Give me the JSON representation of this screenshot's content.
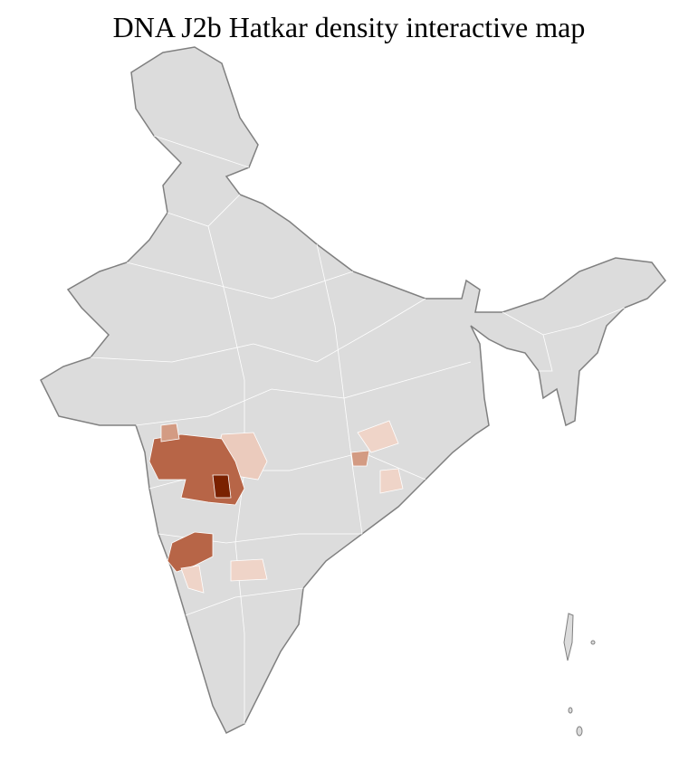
{
  "title": "DNA J2b Hatkar density interactive map"
}
